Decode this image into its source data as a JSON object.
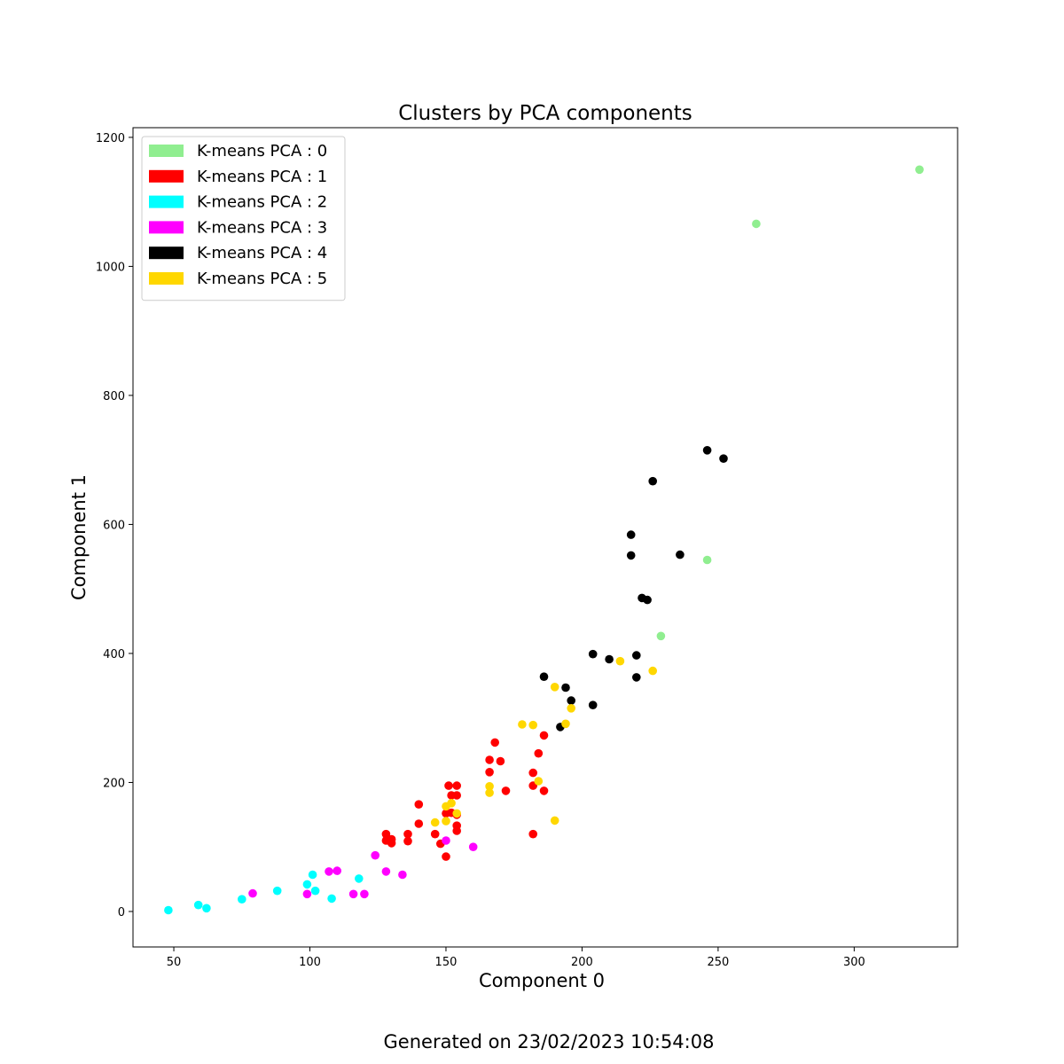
{
  "chart_data": {
    "type": "scatter",
    "title": "Clusters by PCA components",
    "xlabel": "Component 0",
    "ylabel": "Component 1",
    "xlim": [
      35,
      338
    ],
    "ylim": [
      -55,
      1215
    ],
    "xticks": [
      50,
      100,
      150,
      200,
      250,
      300
    ],
    "yticks": [
      0,
      200,
      400,
      600,
      800,
      1000,
      1200
    ],
    "legend_position": "upper-left",
    "grid": false,
    "series": [
      {
        "name": "K-means PCA : 0",
        "color": "#90ee90",
        "points": [
          [
            324,
            1150
          ],
          [
            264,
            1066
          ],
          [
            246,
            545
          ],
          [
            229,
            427
          ]
        ]
      },
      {
        "name": "K-means PCA : 1",
        "color": "#ff0000",
        "points": [
          [
            168,
            262
          ],
          [
            186,
            273
          ],
          [
            184,
            245
          ],
          [
            166,
            235
          ],
          [
            170,
            233
          ],
          [
            166,
            216
          ],
          [
            182,
            215
          ],
          [
            151,
            195
          ],
          [
            154,
            195
          ],
          [
            182,
            195
          ],
          [
            172,
            187
          ],
          [
            186,
            187
          ],
          [
            152,
            180
          ],
          [
            154,
            180
          ],
          [
            140,
            166
          ],
          [
            150,
            152
          ],
          [
            152,
            153
          ],
          [
            154,
            150
          ],
          [
            140,
            136
          ],
          [
            154,
            133
          ],
          [
            154,
            125
          ],
          [
            128,
            120
          ],
          [
            136,
            120
          ],
          [
            146,
            120
          ],
          [
            182,
            120
          ],
          [
            128,
            110
          ],
          [
            130,
            112
          ],
          [
            136,
            109
          ],
          [
            130,
            106
          ],
          [
            148,
            105
          ],
          [
            150,
            85
          ]
        ]
      },
      {
        "name": "K-means PCA : 2",
        "color": "#00ffff",
        "points": [
          [
            101,
            57
          ],
          [
            118,
            51
          ],
          [
            99,
            42
          ],
          [
            88,
            32
          ],
          [
            102,
            32
          ],
          [
            108,
            20
          ],
          [
            75,
            19
          ],
          [
            59,
            10
          ],
          [
            62,
            5
          ],
          [
            48,
            2
          ]
        ]
      },
      {
        "name": "K-means PCA : 3",
        "color": "#ff00ff",
        "points": [
          [
            124,
            87
          ],
          [
            150,
            110
          ],
          [
            160,
            100
          ],
          [
            107,
            62
          ],
          [
            110,
            63
          ],
          [
            128,
            62
          ],
          [
            134,
            57
          ],
          [
            79,
            28
          ],
          [
            99,
            27
          ],
          [
            116,
            27
          ],
          [
            120,
            27
          ]
        ]
      },
      {
        "name": "K-means PCA : 4",
        "color": "#000000",
        "points": [
          [
            246,
            715
          ],
          [
            252,
            702
          ],
          [
            226,
            667
          ],
          [
            218,
            584
          ],
          [
            218,
            552
          ],
          [
            236,
            553
          ],
          [
            222,
            486
          ],
          [
            224,
            483
          ],
          [
            204,
            399
          ],
          [
            210,
            391
          ],
          [
            220,
            397
          ],
          [
            186,
            364
          ],
          [
            220,
            363
          ],
          [
            194,
            347
          ],
          [
            196,
            327
          ],
          [
            204,
            320
          ],
          [
            192,
            286
          ]
        ]
      },
      {
        "name": "K-means PCA : 5",
        "color": "#ffd700",
        "points": [
          [
            214,
            388
          ],
          [
            226,
            373
          ],
          [
            190,
            348
          ],
          [
            196,
            315
          ],
          [
            178,
            290
          ],
          [
            182,
            289
          ],
          [
            194,
            291
          ],
          [
            184,
            202
          ],
          [
            166,
            194
          ],
          [
            166,
            184
          ],
          [
            152,
            168
          ],
          [
            150,
            163
          ],
          [
            154,
            152
          ],
          [
            146,
            138
          ],
          [
            150,
            140
          ],
          [
            190,
            141
          ]
        ]
      }
    ]
  },
  "footer": "Generated on 23/02/2023 10:54:08"
}
